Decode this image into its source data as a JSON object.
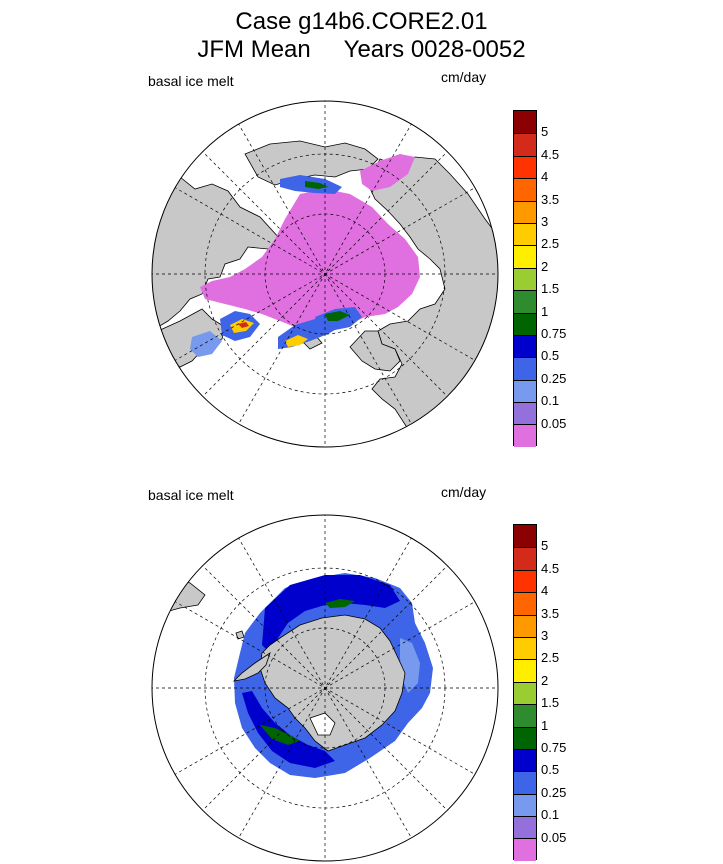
{
  "title": {
    "line1": "Case g14b6.CORE2.01",
    "line2": "JFM Mean     Years 0028-0052"
  },
  "panels": [
    {
      "hemisphere": "north",
      "variable_label": "basal ice melt",
      "units_label": "cm/day"
    },
    {
      "hemisphere": "south",
      "variable_label": "basal ice melt",
      "units_label": "cm/day"
    }
  ],
  "colorbar": {
    "labels": [
      "5",
      "4.5",
      "4",
      "3.5",
      "3",
      "2.5",
      "2",
      "1.5",
      "1",
      "0.75",
      "0.5",
      "0.25",
      "0.1",
      "0.05"
    ],
    "colors": [
      "#8B0000",
      "#D42A1A",
      "#FF3300",
      "#FF6600",
      "#FF9900",
      "#FFCC00",
      "#FFEE00",
      "#9ACD32",
      "#2E8B2E",
      "#006400",
      "#0000CD",
      "#3E64E8",
      "#7799EE",
      "#9370DB",
      "#E070E0"
    ]
  },
  "map_colors": {
    "land": "#C8C8C8",
    "ocean": "#FFFFFF"
  }
}
